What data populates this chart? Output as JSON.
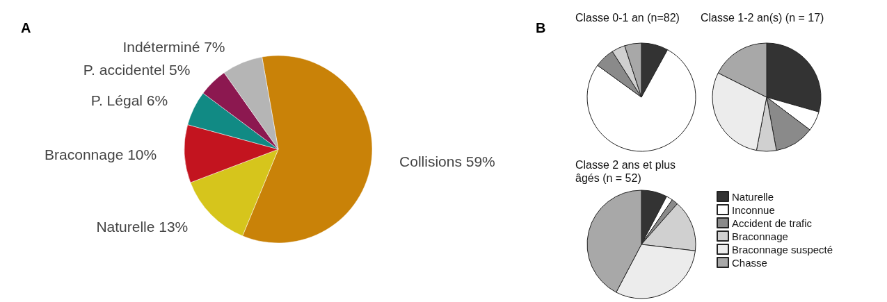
{
  "chart_data": [
    {
      "type": "pie",
      "annotations": [
        "A"
      ],
      "categories": [
        "Collisions",
        "Naturelle",
        "Braconnage",
        "P. Légal",
        "P. accidentel",
        "Indéterminé"
      ],
      "values": [
        59,
        13,
        10,
        6,
        5,
        7
      ],
      "value_labels": [
        "59%",
        "13%",
        "10%",
        "6%",
        "5%",
        "7%"
      ],
      "colors": [
        "#c98208",
        "#d6c51c",
        "#c3141f",
        "#118a84",
        "#8c1850",
        "#b5b5b5"
      ]
    },
    {
      "type": "pie",
      "annotations": [
        "B"
      ],
      "legend": "bottom right",
      "categories": [
        "Naturelle",
        "Inconnue",
        "Accident de trafic",
        "Braconnage",
        "Braconnage suspecté",
        "Chasse"
      ],
      "colors": [
        "#333333",
        "#ffffff",
        "#8a8a8a",
        "#d0d0d0",
        "#ececec",
        "#a8a8a8"
      ],
      "series": [
        {
          "name": "Classe 0-1 an (n=82)",
          "values": [
            8,
            77,
            6,
            4,
            null,
            5
          ]
        },
        {
          "name": "Classe 1-2 an(s) (n = 17)",
          "values": [
            29.4,
            5.9,
            11.8,
            5.9,
            29.4,
            17.6
          ]
        },
        {
          "name": "Classe 2 ans et plus âgés (n = 52)",
          "values": [
            7.7,
            1.9,
            1.9,
            15.4,
            30.8,
            42.3
          ]
        }
      ]
    }
  ]
}
